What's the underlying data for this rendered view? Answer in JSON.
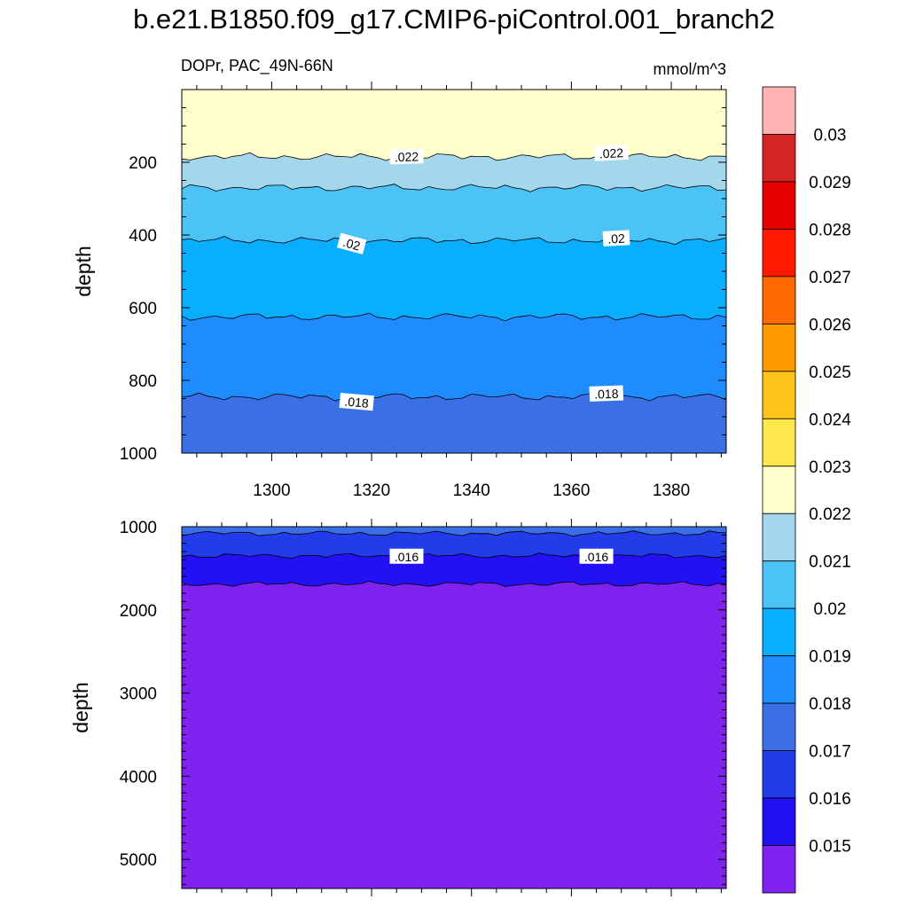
{
  "chart_data": [
    {
      "type": "contour",
      "title": "b.e21.B1850.f09_g17.CMIP6-piControl.001_branch2",
      "subtitle_left": "DOPr, PAC_49N-66N",
      "subtitle_right": "mmol/m^3",
      "panel": "upper",
      "xlabel": "",
      "ylabel": "depth",
      "xlim": [
        1282,
        1391
      ],
      "ylim": [
        1000,
        0
      ],
      "xticks": [
        1300,
        1320,
        1340,
        1360,
        1380
      ],
      "xtick_labels": [
        "1300",
        "1320",
        "1340",
        "1360",
        "1380"
      ],
      "yticks": [
        200,
        400,
        600,
        800,
        1000
      ],
      "ytick_labels": [
        "200",
        "400",
        "600",
        "800",
        "1000"
      ],
      "contour_depths": [
        {
          "level": 0.022,
          "depth": 185
        },
        {
          "level": 0.021,
          "depth": 270
        },
        {
          "level": 0.02,
          "depth": 415
        },
        {
          "level": 0.019,
          "depth": 625
        },
        {
          "level": 0.018,
          "depth": 845
        }
      ],
      "contour_labels": [
        {
          "text": ".022",
          "x": 1327,
          "depth": 185
        },
        {
          "text": ".022",
          "x": 1368,
          "depth": 175
        },
        {
          "text": ".02",
          "x": 1316,
          "depth": 425
        },
        {
          "text": ".02",
          "x": 1369,
          "depth": 410
        },
        {
          "text": ".018",
          "x": 1317,
          "depth": 860
        },
        {
          "text": ".018",
          "x": 1367,
          "depth": 837
        }
      ]
    },
    {
      "type": "contour",
      "panel": "lower",
      "xlabel": "",
      "ylabel": "depth",
      "xlim": [
        1282,
        1391
      ],
      "ylim": [
        5350,
        1000
      ],
      "yticks": [
        1000,
        2000,
        3000,
        4000,
        5000
      ],
      "ytick_labels": [
        "1000",
        "2000",
        "3000",
        "4000",
        "5000"
      ],
      "contour_depths": [
        {
          "level": 0.017,
          "depth": 1080
        },
        {
          "level": 0.016,
          "depth": 1350
        },
        {
          "level": 0.015,
          "depth": 1690
        }
      ],
      "contour_labels": [
        {
          "text": ".016",
          "x": 1327,
          "depth": 1360
        },
        {
          "text": ".016",
          "x": 1365,
          "depth": 1360
        }
      ]
    }
  ],
  "colorbar": {
    "labels": [
      "0.03",
      "0.029",
      "0.028",
      "0.027",
      "0.026",
      "0.025",
      "0.024",
      "0.023",
      "0.022",
      "0.021",
      "0.02",
      "0.019",
      "0.018",
      "0.017",
      "0.016",
      "0.015"
    ],
    "colors_top_to_bottom": [
      "#ffb3b3",
      "#d42626",
      "#e60000",
      "#ff1a00",
      "#ff6a00",
      "#ff9a00",
      "#ffc31a",
      "#ffe84d",
      "#ffffcc",
      "#a4d7ec",
      "#4cc3f6",
      "#0aaeff",
      "#1e8cff",
      "#3a6fe6",
      "#213ce8",
      "#2410f5",
      "#7f22f0"
    ]
  },
  "fills": {
    "gt_022": "#ffffcc",
    "b021_022": "#a4d7ec",
    "b020_021": "#4cc3f6",
    "b019_020": "#0aaeff",
    "b018_019": "#1e8cff",
    "b017_018": "#3a6fe6",
    "b016_017": "#213ce8",
    "b015_016": "#2410f5",
    "lt_015": "#7f22f0"
  }
}
